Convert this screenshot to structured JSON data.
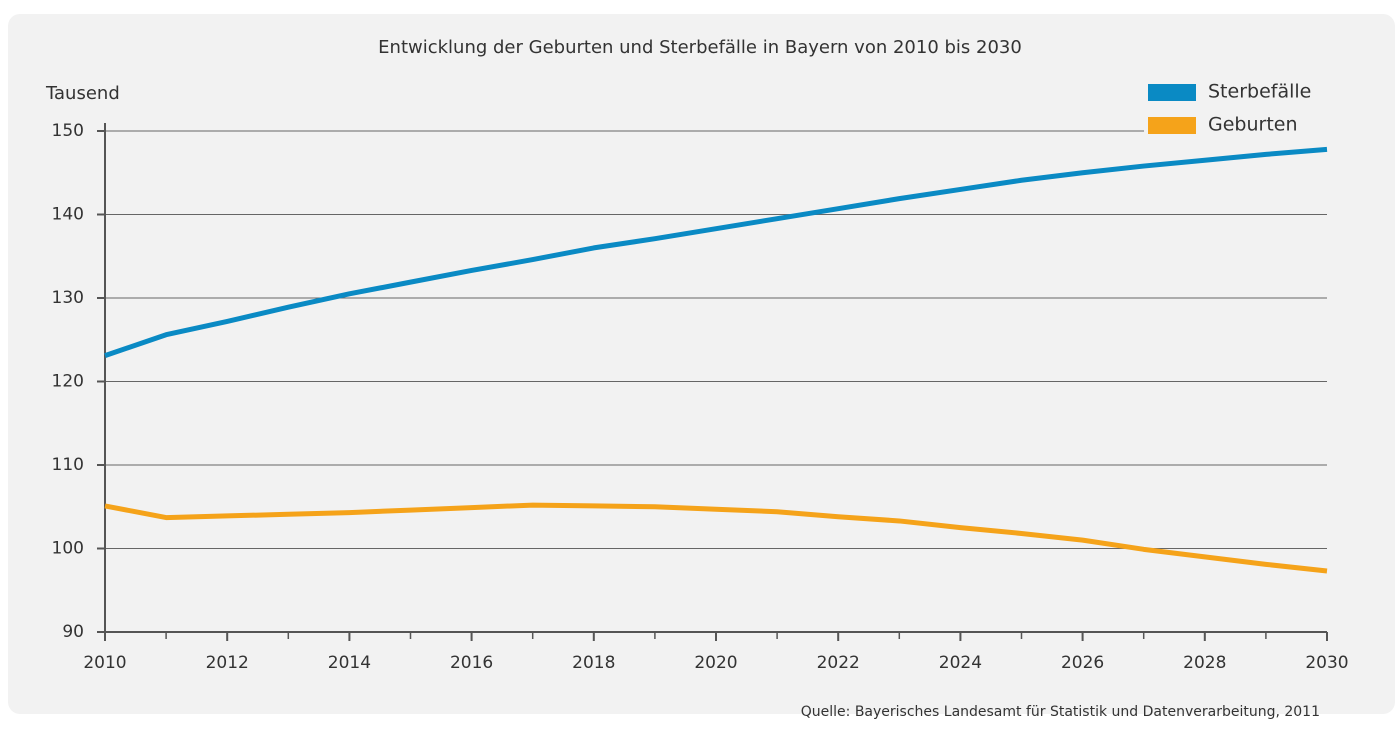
{
  "chart_data": {
    "type": "line",
    "title": "Entwicklung der Geburten und Sterbefälle in Bayern von 2010 bis 2030",
    "y_label": "Tausend",
    "source": "Quelle: Bayerisches Landesamt für Statistik und Datenverarbeitung, 2011",
    "x": [
      2010,
      2011,
      2012,
      2013,
      2014,
      2015,
      2016,
      2017,
      2018,
      2019,
      2020,
      2021,
      2022,
      2023,
      2024,
      2025,
      2026,
      2027,
      2028,
      2029,
      2030
    ],
    "series": [
      {
        "name": "Sterbefälle",
        "color": "#0a8ac4",
        "values": [
          123.1,
          125.6,
          127.2,
          128.9,
          130.5,
          131.9,
          133.3,
          134.6,
          136.0,
          137.1,
          138.3,
          139.5,
          140.7,
          141.9,
          143.0,
          144.1,
          145.0,
          145.8,
          146.5,
          147.2,
          147.8
        ]
      },
      {
        "name": "Geburten",
        "color": "#f5a31a",
        "values": [
          105.1,
          103.7,
          103.9,
          104.1,
          104.3,
          104.6,
          104.9,
          105.2,
          105.1,
          105.0,
          104.7,
          104.4,
          103.8,
          103.3,
          102.5,
          101.8,
          101.0,
          99.9,
          99.0,
          98.1,
          97.3
        ]
      }
    ],
    "xlim": [
      2010,
      2030
    ],
    "xticks": [
      2010,
      2012,
      2014,
      2016,
      2018,
      2020,
      2022,
      2024,
      2026,
      2028,
      2030
    ],
    "ylim": [
      90,
      150
    ],
    "yticks": [
      90,
      100,
      110,
      120,
      130,
      140,
      150
    ],
    "grid": true,
    "legend": "top-right"
  }
}
